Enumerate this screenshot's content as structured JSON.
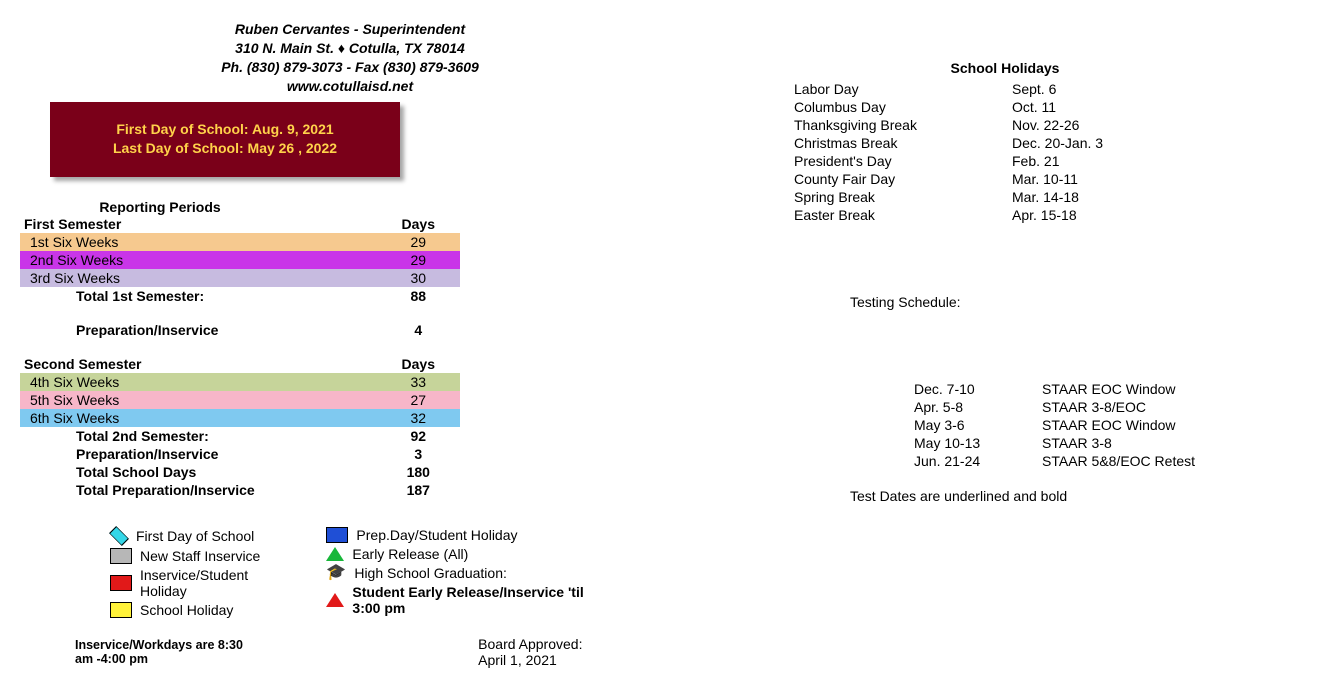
{
  "header": {
    "line1": "Ruben Cervantes - Superintendent",
    "line2": "310 N. Main St. ♦ Cotulla, TX  78014",
    "line3": "Ph. (830) 879-3073 - Fax (830) 879-3609",
    "line4": "www.cotullaisd.net"
  },
  "banner": {
    "first": "First Day of School: Aug. 9, 2021",
    "last": "Last Day of School:  May 26 , 2022",
    "bg": "#7a0019",
    "fg": "#ffd24a"
  },
  "reporting": {
    "title": "Reporting Periods",
    "sem1_hdr_label": "First Semester",
    "sem2_hdr_label": "Second Semester",
    "days_hdr": "Days",
    "rows1": [
      {
        "label": "1st  Six Weeks",
        "days": "29",
        "bg": "#f6c98f"
      },
      {
        "label": "2nd Six Weeks",
        "days": "29",
        "bg": "#c935e8"
      },
      {
        "label": "3rd  Six Weeks",
        "days": "30",
        "bg": "#c7bbe0"
      }
    ],
    "total1_label": "Total 1st Semester:",
    "total1_days": "88",
    "prep1_label": "Preparation/Inservice",
    "prep1_days": "4",
    "rows2": [
      {
        "label": "4th  Six Weeks",
        "days": "33",
        "bg": "#c6d49a"
      },
      {
        "label": "5th  Six Weeks",
        "days": "27",
        "bg": "#f7b6c9"
      },
      {
        "label": "6th  Six Weeks",
        "days": "32",
        "bg": "#7fc9f0"
      }
    ],
    "total2_label": "Total 2nd Semester:",
    "total2_days": "92",
    "prep2_label": "Preparation/Inservice",
    "prep2_days": "3",
    "tsd_label": "Total School Days",
    "tsd_days": "180",
    "tpi_label": "Total Preparation/Inservice",
    "tpi_days": "187"
  },
  "legend": {
    "left": [
      {
        "shape": "diamond",
        "fill": "#35d7e8",
        "stroke": "#000",
        "label": "First Day of School"
      },
      {
        "shape": "rect",
        "fill": "#b7b7b7",
        "stroke": "#000",
        "label": "New Staff Inservice"
      },
      {
        "shape": "rect",
        "fill": "#e11919",
        "stroke": "#000",
        "label": "Inservice/Student Holiday"
      },
      {
        "shape": "rect",
        "fill": "#fff23a",
        "stroke": "#000",
        "label": "School Holiday"
      }
    ],
    "right": [
      {
        "shape": "rect",
        "fill": "#1f4fd6",
        "stroke": "#000",
        "label": "Prep.Day/Student Holiday"
      },
      {
        "shape": "triangle",
        "fill": "#18b73a",
        "stroke": "#000",
        "label": "Early Release (All)"
      },
      {
        "shape": "gradcap",
        "label": "High School Graduation:"
      },
      {
        "shape": "triangle",
        "fill": "#e11919",
        "stroke": "#000",
        "label": "Student Early Release/Inservice 'til 3:00 pm",
        "bold": true
      }
    ]
  },
  "holidays": {
    "title": "School Holidays",
    "rows": [
      {
        "name": "Labor Day",
        "date": "Sept. 6"
      },
      {
        "name": "Columbus Day",
        "date": "Oct. 11"
      },
      {
        "name": "Thanksgiving Break",
        "date": "Nov. 22-26"
      },
      {
        "name": "Christmas Break",
        "date": "Dec. 20-Jan. 3"
      },
      {
        "name": "President's Day",
        "date": "Feb. 21"
      },
      {
        "name": "County Fair Day",
        "date": "Mar. 10-11"
      },
      {
        "name": "Spring Break",
        "date": "Mar. 14-18"
      },
      {
        "name": "Easter Break",
        "date": "Apr. 15-18"
      }
    ]
  },
  "testing": {
    "title": "Testing Schedule:",
    "rows": [
      {
        "date": "Dec. 7-10",
        "name": "STAAR EOC Window"
      },
      {
        "date": "Apr. 5-8",
        "name": "STAAR 3-8/EOC"
      },
      {
        "date": "May 3-6",
        "name": "STAAR EOC Window"
      },
      {
        "date": "May 10-13",
        "name": "STAAR 3-8"
      },
      {
        "date": "Jun. 21-24",
        "name": "STAAR 5&8/EOC Retest"
      }
    ],
    "note": "Test Dates are underlined and bold"
  },
  "footer": {
    "inservice": "Inservice/Workdays are 8:30 am -4:00 pm",
    "approved": "Board Approved: April 1, 2021"
  }
}
